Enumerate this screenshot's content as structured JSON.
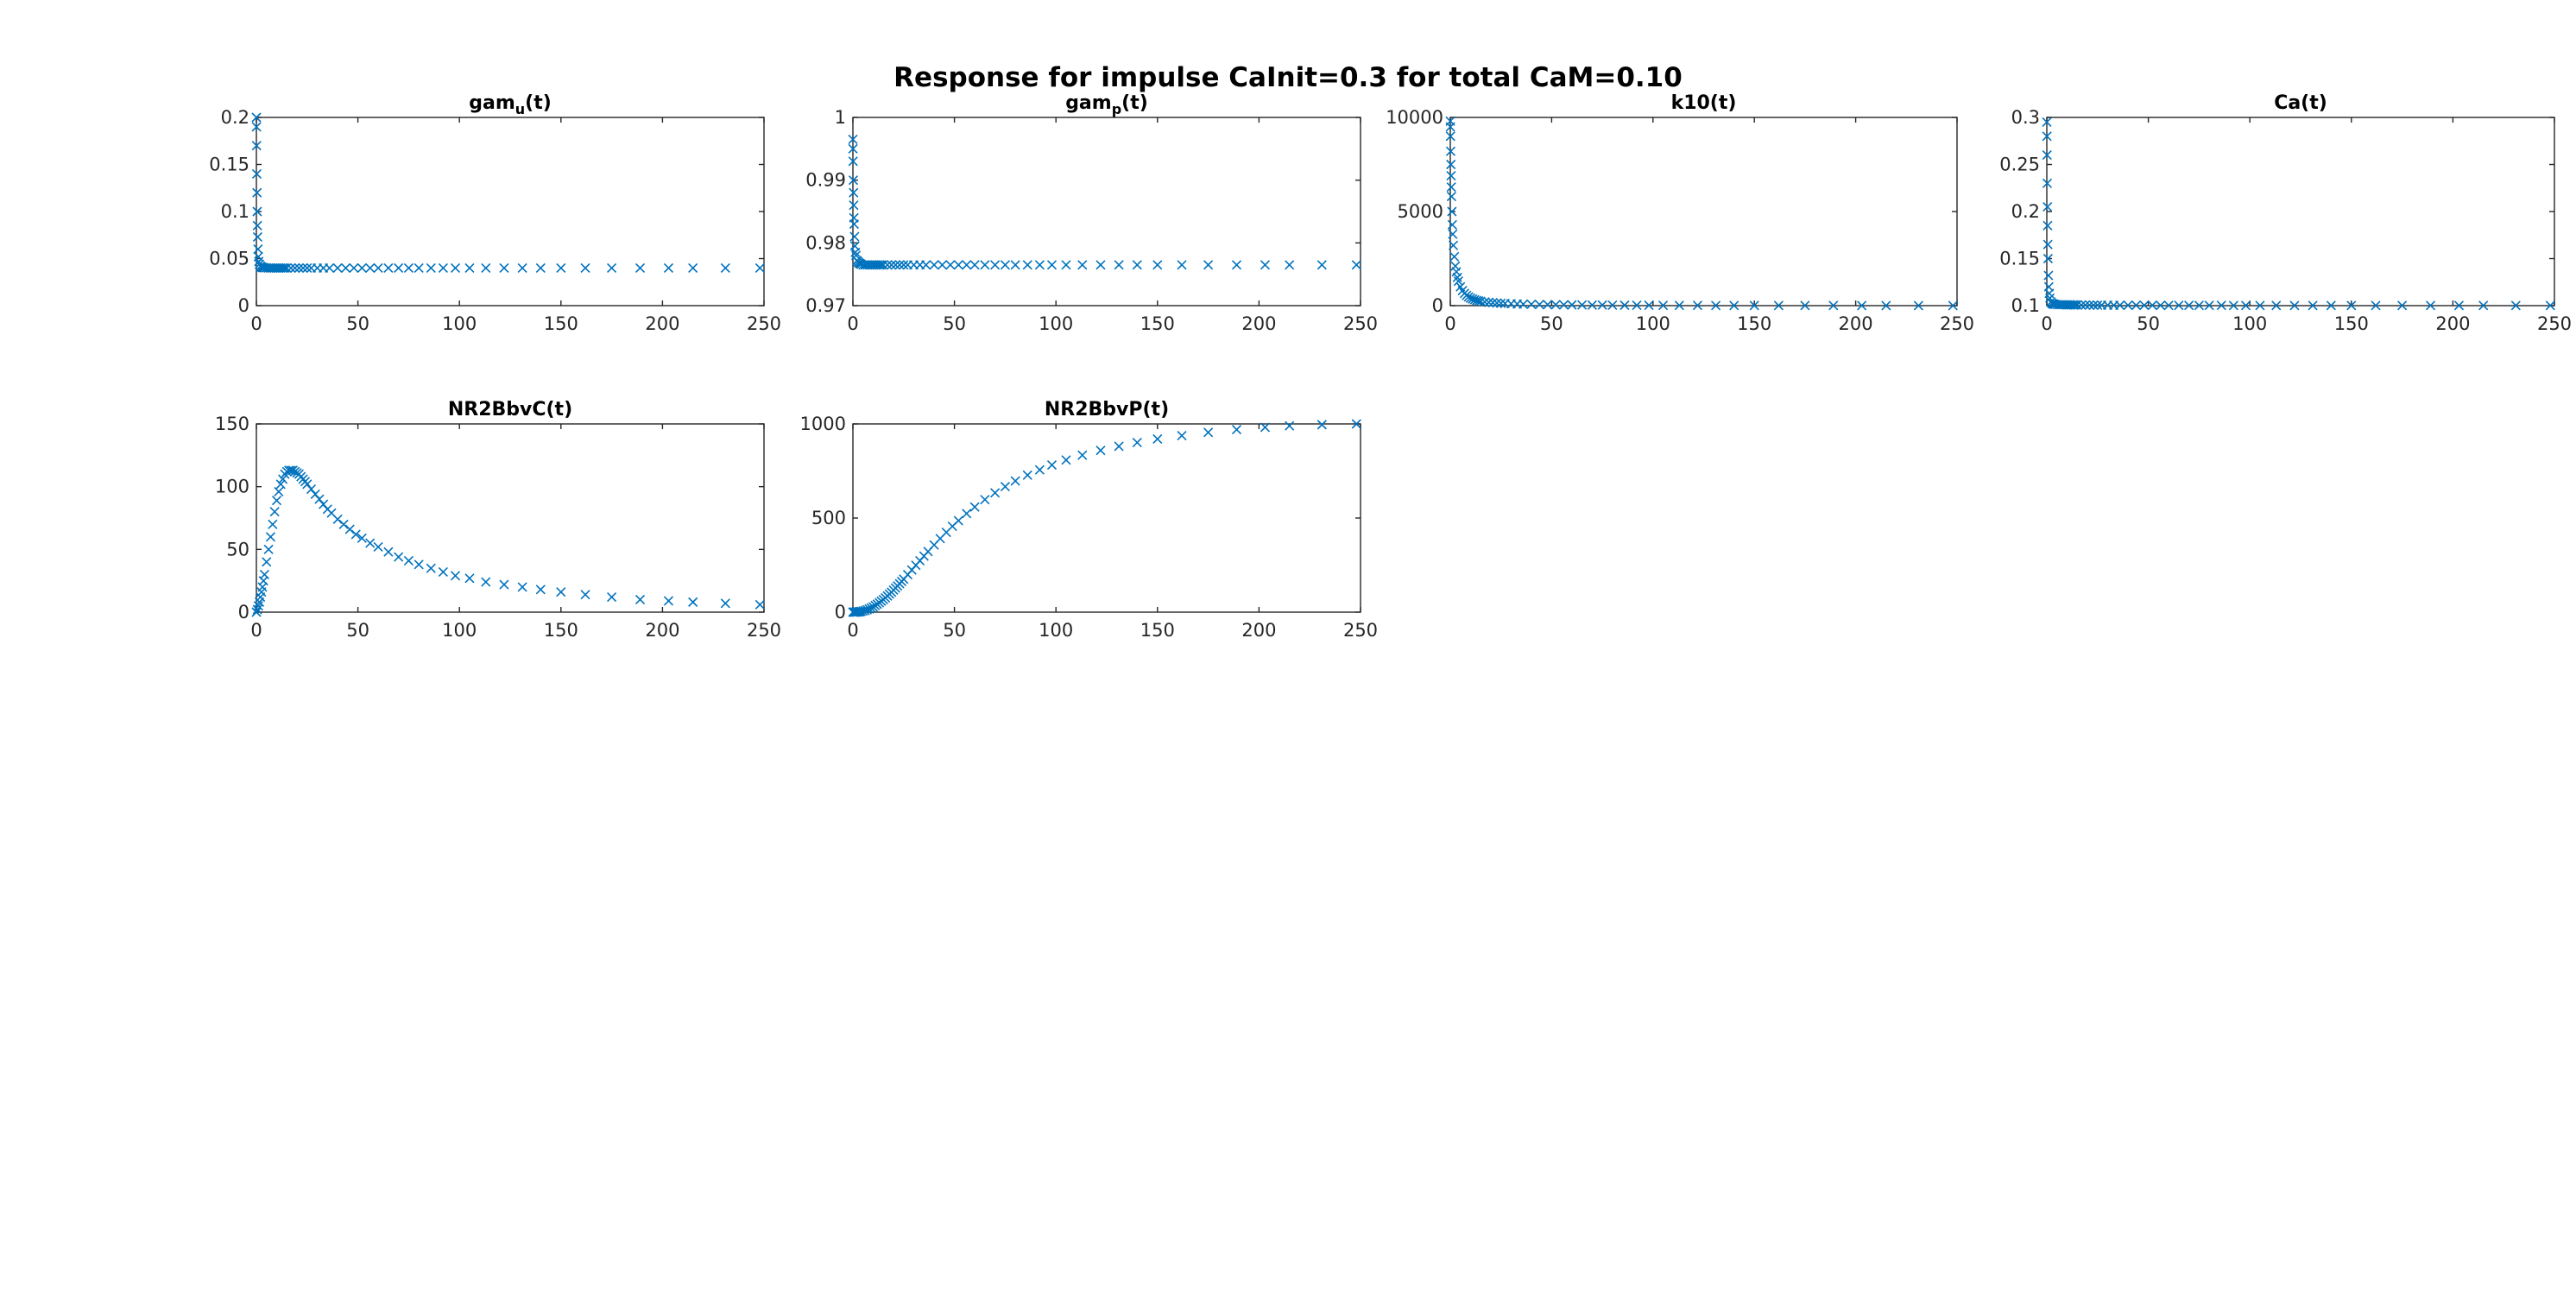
{
  "figure": {
    "suptitle": "Response for impulse CaInit=0.3 for total CaM=0.10",
    "marker_color": "#0072BD",
    "axes_color": "#262626"
  },
  "chart_data": [
    {
      "type": "scatter",
      "title": "gam",
      "title_sub": "u",
      "title_suffix": "(t)",
      "xlim": [
        0,
        250
      ],
      "ylim": [
        0,
        0.2
      ],
      "xticks": [
        0,
        50,
        100,
        150,
        200,
        250
      ],
      "yticks": [
        0,
        0.05,
        0.1,
        0.15,
        0.2
      ],
      "ytick_labels": [
        "0",
        "0.05",
        "0.1",
        "0.15",
        "0.2"
      ],
      "x": [
        0,
        0.05,
        0.1,
        0.2,
        0.3,
        0.4,
        0.5,
        0.6,
        0.8,
        1,
        1.2,
        1.5,
        2,
        2.5,
        3,
        3.5,
        4,
        5,
        6,
        7,
        8,
        9,
        10,
        11,
        12,
        13,
        14,
        15,
        17,
        19,
        21,
        23,
        25,
        27,
        30,
        33,
        36,
        40,
        44,
        48,
        52,
        56,
        60,
        65,
        70,
        75,
        80,
        86,
        92,
        98,
        105,
        113,
        122,
        131,
        140,
        150,
        162,
        175,
        189,
        203,
        215,
        231,
        248
      ],
      "y": [
        0.2,
        0.19,
        0.17,
        0.14,
        0.12,
        0.1,
        0.085,
        0.073,
        0.06,
        0.052,
        0.047,
        0.044,
        0.042,
        0.041,
        0.0405,
        0.0403,
        0.0402,
        0.0401,
        0.04,
        0.04,
        0.04,
        0.04,
        0.04,
        0.04,
        0.04,
        0.04,
        0.04,
        0.04,
        0.04,
        0.04,
        0.04,
        0.04,
        0.04,
        0.04,
        0.04,
        0.04,
        0.04,
        0.04,
        0.04,
        0.04,
        0.04,
        0.04,
        0.04,
        0.04,
        0.04,
        0.04,
        0.04,
        0.04,
        0.04,
        0.04,
        0.04,
        0.04,
        0.04,
        0.04,
        0.04,
        0.04,
        0.04,
        0.04,
        0.04,
        0.04,
        0.04,
        0.04,
        0.04
      ]
    },
    {
      "type": "scatter",
      "title": "gam",
      "title_sub": "p",
      "title_suffix": "(t)",
      "xlim": [
        0,
        250
      ],
      "ylim": [
        0.97,
        1
      ],
      "xticks": [
        0,
        50,
        100,
        150,
        200,
        250
      ],
      "yticks": [
        0.97,
        0.98,
        0.99,
        1
      ],
      "ytick_labels": [
        "0.97",
        "0.98",
        "0.99",
        "1"
      ],
      "x": [
        0,
        0.05,
        0.1,
        0.2,
        0.3,
        0.4,
        0.5,
        0.6,
        0.8,
        1,
        1.2,
        1.5,
        2,
        2.5,
        3,
        3.5,
        4,
        5,
        6,
        7,
        8,
        9,
        10,
        11,
        12,
        13,
        14,
        15,
        17,
        19,
        21,
        23,
        25,
        27,
        30,
        33,
        36,
        40,
        44,
        48,
        52,
        56,
        60,
        65,
        70,
        75,
        80,
        86,
        92,
        98,
        105,
        113,
        122,
        131,
        140,
        150,
        162,
        175,
        189,
        203,
        215,
        231,
        248
      ],
      "y": [
        0.9965,
        0.995,
        0.993,
        0.99,
        0.988,
        0.986,
        0.984,
        0.983,
        0.981,
        0.9795,
        0.9785,
        0.978,
        0.9772,
        0.977,
        0.9768,
        0.9767,
        0.9766,
        0.9765,
        0.9765,
        0.9765,
        0.9765,
        0.9765,
        0.9765,
        0.9765,
        0.9765,
        0.9765,
        0.9765,
        0.9765,
        0.9765,
        0.9765,
        0.9765,
        0.9765,
        0.9765,
        0.9765,
        0.9765,
        0.9765,
        0.9765,
        0.9765,
        0.9765,
        0.9765,
        0.9765,
        0.9765,
        0.9765,
        0.9765,
        0.9765,
        0.9765,
        0.9765,
        0.9765,
        0.9765,
        0.9765,
        0.9765,
        0.9765,
        0.9765,
        0.9765,
        0.9765,
        0.9765,
        0.9765,
        0.9765,
        0.9765,
        0.9765,
        0.9765,
        0.9765,
        0.9765
      ]
    },
    {
      "type": "scatter",
      "title": "k10(t)",
      "xlim": [
        0,
        250
      ],
      "ylim": [
        0,
        10000
      ],
      "xticks": [
        0,
        50,
        100,
        150,
        200,
        250
      ],
      "yticks": [
        0,
        5000,
        10000
      ],
      "ytick_labels": [
        "0",
        "5000",
        "10000"
      ],
      "x": [
        0,
        0.05,
        0.1,
        0.2,
        0.3,
        0.4,
        0.5,
        0.6,
        0.8,
        1,
        1.2,
        1.5,
        2,
        2.5,
        3,
        3.5,
        4,
        5,
        6,
        7,
        8,
        9,
        10,
        11,
        12,
        13,
        14,
        15,
        17,
        19,
        21,
        23,
        25,
        27,
        30,
        33,
        36,
        40,
        44,
        48,
        52,
        56,
        60,
        65,
        70,
        75,
        80,
        86,
        92,
        98,
        105,
        113,
        122,
        131,
        140,
        150,
        162,
        175,
        189,
        203,
        215,
        231,
        248
      ],
      "y": [
        9800,
        9500,
        9000,
        8200,
        7500,
        6900,
        6300,
        5800,
        5000,
        4300,
        3800,
        3200,
        2600,
        2100,
        1800,
        1500,
        1300,
        1000,
        800,
        650,
        540,
        460,
        400,
        350,
        310,
        280,
        250,
        230,
        200,
        175,
        155,
        140,
        125,
        115,
        100,
        90,
        80,
        70,
        62,
        55,
        50,
        45,
        40,
        36,
        32,
        29,
        26,
        23,
        20,
        18,
        16,
        14,
        12,
        11,
        10,
        9,
        8,
        7,
        6,
        5,
        4,
        3,
        2
      ]
    },
    {
      "type": "scatter",
      "title": "Ca(t)",
      "xlim": [
        0,
        250
      ],
      "ylim": [
        0.1,
        0.3
      ],
      "xticks": [
        0,
        50,
        100,
        150,
        200,
        250
      ],
      "yticks": [
        0.1,
        0.15,
        0.2,
        0.25,
        0.3
      ],
      "ytick_labels": [
        "0.1",
        "0.15",
        "0.2",
        "0.25",
        "0.3"
      ],
      "x": [
        0,
        0.05,
        0.1,
        0.2,
        0.3,
        0.4,
        0.5,
        0.6,
        0.8,
        1,
        1.2,
        1.5,
        2,
        2.5,
        3,
        3.5,
        4,
        5,
        6,
        7,
        8,
        9,
        10,
        11,
        12,
        13,
        14,
        15,
        17,
        19,
        21,
        23,
        25,
        27,
        30,
        33,
        36,
        40,
        44,
        48,
        52,
        56,
        60,
        65,
        70,
        75,
        80,
        86,
        92,
        98,
        105,
        113,
        122,
        131,
        140,
        150,
        162,
        175,
        189,
        203,
        215,
        231,
        248
      ],
      "y": [
        0.295,
        0.28,
        0.26,
        0.23,
        0.205,
        0.185,
        0.165,
        0.15,
        0.132,
        0.12,
        0.113,
        0.108,
        0.104,
        0.1025,
        0.1018,
        0.1015,
        0.1013,
        0.1011,
        0.101,
        0.101,
        0.101,
        0.101,
        0.1008,
        0.1008,
        0.1008,
        0.1008,
        0.1008,
        0.1008,
        0.1006,
        0.1006,
        0.1006,
        0.1005,
        0.1005,
        0.1005,
        0.1005,
        0.1004,
        0.1004,
        0.1004,
        0.1004,
        0.1004,
        0.1004,
        0.1003,
        0.1003,
        0.1003,
        0.1003,
        0.1003,
        0.1003,
        0.1003,
        0.1002,
        0.1002,
        0.1002,
        0.1002,
        0.1002,
        0.1002,
        0.1002,
        0.1002,
        0.1002,
        0.1002,
        0.1002,
        0.1002,
        0.1002,
        0.1002,
        0.1002
      ]
    },
    {
      "type": "scatter",
      "title": "NR2BbvC(t)",
      "xlim": [
        0,
        250
      ],
      "ylim": [
        0,
        150
      ],
      "xticks": [
        0,
        50,
        100,
        150,
        200,
        250
      ],
      "yticks": [
        0,
        50,
        100,
        150
      ],
      "ytick_labels": [
        "0",
        "50",
        "100",
        "150"
      ],
      "x": [
        0,
        0.5,
        1,
        1.5,
        2,
        2.5,
        3,
        3.5,
        4,
        5,
        6,
        7,
        8,
        9,
        10,
        11,
        12,
        13,
        14,
        15,
        16,
        17,
        18,
        19,
        20,
        21,
        22,
        23,
        24,
        25,
        27,
        29,
        31,
        33,
        35,
        37,
        40,
        43,
        46,
        49,
        52,
        56,
        60,
        65,
        70,
        75,
        80,
        86,
        92,
        98,
        105,
        113,
        122,
        131,
        140,
        150,
        162,
        175,
        189,
        203,
        215,
        231,
        248
      ],
      "y": [
        0,
        2,
        5,
        8,
        12,
        16,
        20,
        25,
        30,
        40,
        50,
        60,
        70,
        80,
        89,
        96,
        102,
        106,
        110,
        112,
        113,
        113,
        113,
        112,
        111,
        110,
        108,
        106,
        104,
        102,
        98,
        94,
        90,
        86,
        82,
        79,
        74,
        70,
        66,
        62,
        59,
        55,
        52,
        48,
        44,
        41,
        38,
        35,
        32,
        29,
        27,
        24,
        22,
        20,
        18,
        16,
        14,
        12,
        10,
        9,
        8,
        7,
        6
      ]
    },
    {
      "type": "scatter",
      "title": "NR2BbvP(t)",
      "xlim": [
        0,
        250
      ],
      "ylim": [
        0,
        1000
      ],
      "xticks": [
        0,
        50,
        100,
        150,
        200,
        250
      ],
      "yticks": [
        0,
        500,
        1000
      ],
      "ytick_labels": [
        "0",
        "500",
        "1000"
      ],
      "x": [
        0,
        0.5,
        1,
        1.5,
        2,
        2.5,
        3,
        3.5,
        4,
        5,
        6,
        7,
        8,
        9,
        10,
        11,
        12,
        13,
        14,
        15,
        16,
        17,
        18,
        19,
        20,
        21,
        22,
        23,
        24,
        25,
        27,
        29,
        31,
        33,
        35,
        37,
        40,
        43,
        46,
        49,
        52,
        56,
        60,
        65,
        70,
        75,
        80,
        86,
        92,
        98,
        105,
        113,
        122,
        131,
        140,
        150,
        162,
        175,
        189,
        203,
        215,
        231,
        248
      ],
      "y": [
        0,
        0,
        0,
        0,
        1,
        1,
        2,
        3,
        4,
        6,
        9,
        13,
        17,
        22,
        28,
        35,
        42,
        50,
        58,
        67,
        76,
        86,
        96,
        106,
        117,
        128,
        139,
        151,
        163,
        175,
        199,
        224,
        249,
        273,
        298,
        322,
        357,
        391,
        424,
        456,
        486,
        524,
        559,
        598,
        634,
        667,
        697,
        728,
        756,
        782,
        808,
        834,
        859,
        881,
        901,
        920,
        938,
        955,
        970,
        982,
        990,
        996,
        1000
      ]
    }
  ]
}
